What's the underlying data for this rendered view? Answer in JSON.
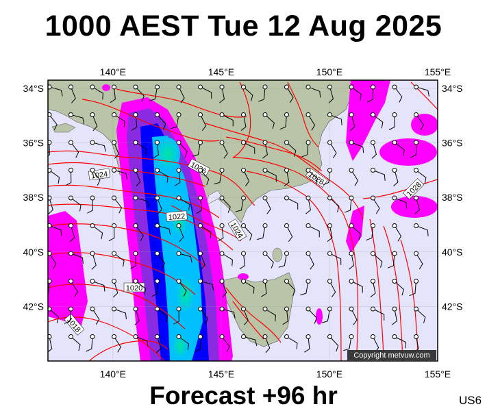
{
  "header": {
    "title": "1000 AEST Tue 12 Aug 2025"
  },
  "footer": {
    "forecast": "Forecast +96 hr",
    "model_code": "US6"
  },
  "map": {
    "copyright": "Copyright metvuw.com",
    "lon_ticks": [
      "140°E",
      "145°E",
      "150°E",
      "155°E"
    ],
    "lat_ticks": [
      "34°S",
      "36°S",
      "38°S",
      "40°S",
      "42°S"
    ],
    "lon_values": [
      140,
      145,
      150,
      155
    ],
    "lat_values": [
      -34,
      -36,
      -38,
      -40,
      -42
    ],
    "extent": {
      "lon_min": 137,
      "lon_max": 155,
      "lat_min": -44,
      "lat_max": -33.7
    },
    "isobar_labels": [
      "1026",
      "1024",
      "1022",
      "1024",
      "1020",
      "1018",
      "1026",
      "1028"
    ],
    "colors": {
      "sea": "#e4e4fa",
      "land": "#b9c4a8",
      "isobar": "#ff0000",
      "rain_light": "#ff00ff",
      "rain_mid": "#8a2be2",
      "rain_heavy": "#0000ff",
      "rain_core": "#00e6a0"
    }
  }
}
